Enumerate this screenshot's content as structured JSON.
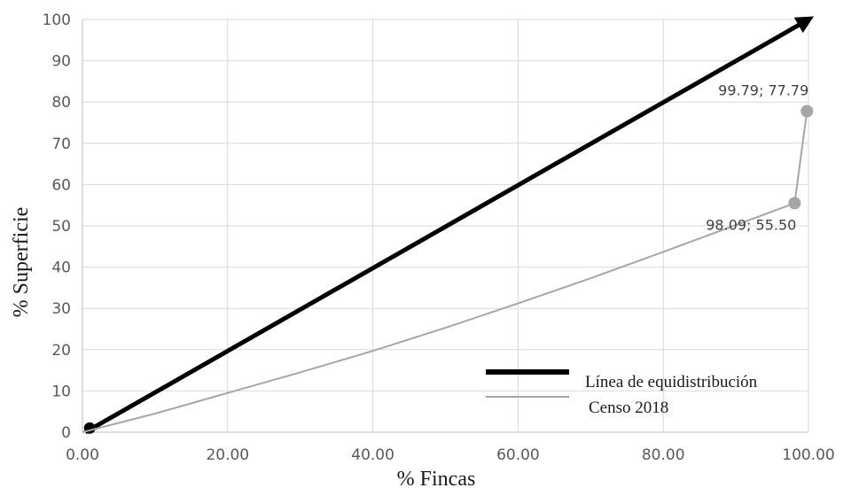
{
  "chart_data": {
    "type": "line",
    "xlabel": "% Fincas",
    "ylabel": "% Superficie",
    "xlim": [
      0,
      100
    ],
    "ylim": [
      0,
      100
    ],
    "x_ticks": [
      "0.00",
      "20.00",
      "40.00",
      "60.00",
      "80.00",
      "100.00"
    ],
    "x_tick_values": [
      0,
      20,
      40,
      60,
      80,
      100
    ],
    "y_ticks": [
      "0",
      "10",
      "20",
      "30",
      "40",
      "50",
      "60",
      "70",
      "80",
      "90",
      "100"
    ],
    "y_tick_values": [
      0,
      10,
      20,
      30,
      40,
      50,
      60,
      70,
      80,
      90,
      100
    ],
    "grid": true,
    "legend_position": "bottom-right",
    "series": [
      {
        "name": "Línea de equidistribución",
        "color": "#000000",
        "style": "thick-arrow",
        "points": [
          [
            0.4,
            0
          ],
          [
            100,
            100
          ]
        ],
        "markers": [
          [
            1,
            1
          ]
        ]
      },
      {
        "name": "Censo 2018",
        "color": "#a6a6a6",
        "style": "curve",
        "points": [
          [
            0,
            0
          ],
          [
            10,
            4.5
          ],
          [
            20,
            9.5
          ],
          [
            30,
            14.5
          ],
          [
            40,
            19.7
          ],
          [
            50,
            25.3
          ],
          [
            60,
            31.2
          ],
          [
            70,
            37.3
          ],
          [
            80,
            43.7
          ],
          [
            90,
            50.2
          ],
          [
            98.09,
            55.5
          ],
          [
            99.79,
            77.79
          ]
        ],
        "markers": [
          [
            98.09,
            55.5
          ],
          [
            99.79,
            77.79
          ]
        ]
      }
    ],
    "annotations": [
      {
        "text": "99.79; 77.79",
        "x": 99.79,
        "y": 77.79,
        "position": "above"
      },
      {
        "text": "98.09; 55.50",
        "x": 98.09,
        "y": 55.5,
        "position": "below"
      }
    ]
  }
}
